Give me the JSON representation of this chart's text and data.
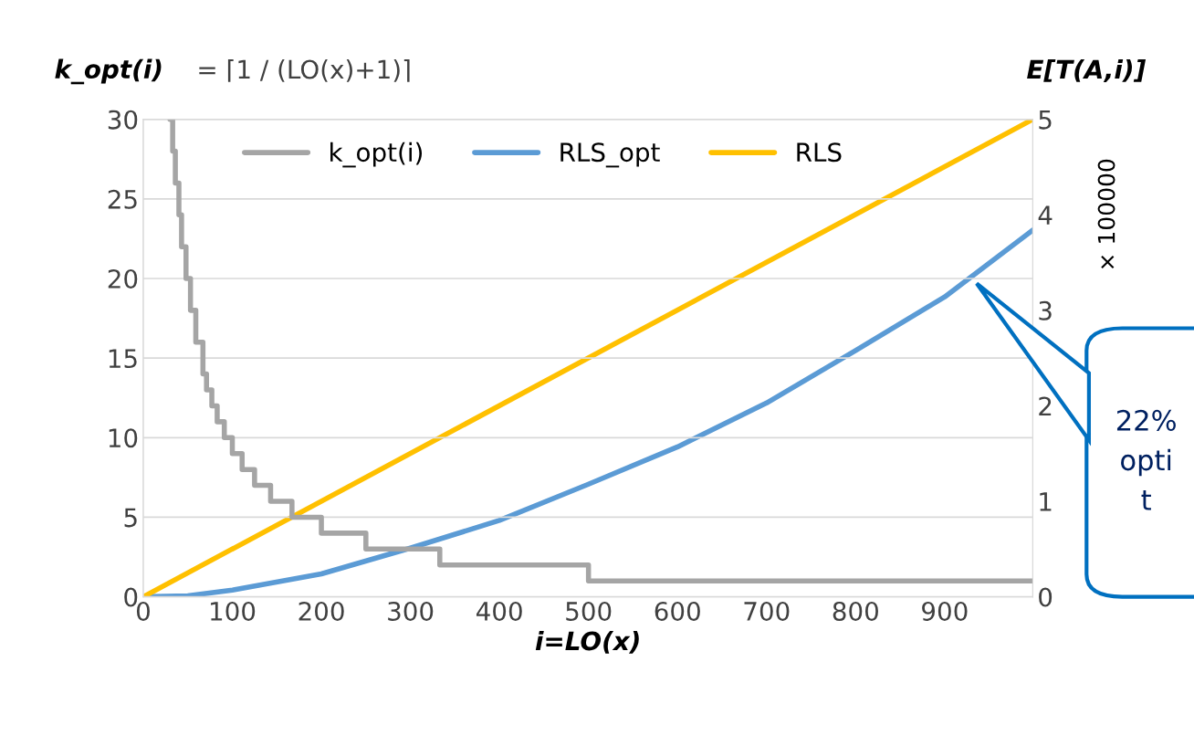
{
  "chart_data": {
    "type": "line",
    "xlabel": "i=LO(x)",
    "ylabel": "k_opt(i)",
    "y2label": "E[T(A,i)]",
    "xlim": [
      0,
      999
    ],
    "xticks": [
      0,
      100,
      200,
      300,
      400,
      500,
      600,
      700,
      800,
      900
    ],
    "ylim": [
      0,
      30
    ],
    "yticks": [
      0,
      5,
      10,
      15,
      20,
      25,
      30
    ],
    "y2lim": [
      0,
      5
    ],
    "y2ticks": [
      0,
      1,
      2,
      3,
      4,
      5
    ],
    "grid": "y",
    "legend": "top",
    "line_style": "solid",
    "marker": "none",
    "series": [
      {
        "name": "k_opt(i)",
        "type": "step",
        "color": "#a5a5a5",
        "x": [
          30,
          33,
          36,
          40,
          43,
          48,
          53,
          59,
          67,
          71,
          77,
          83,
          91,
          100,
          111,
          125,
          143,
          167,
          200,
          250,
          333,
          500,
          999
        ],
        "values": [
          30,
          28,
          26,
          24,
          22,
          20,
          18,
          16,
          14,
          13,
          12,
          11,
          10,
          9,
          8,
          7,
          6,
          5,
          4,
          3,
          2,
          1,
          1
        ]
      },
      {
        "name": "RLS_opt",
        "color": "#5b9bd5",
        "axis": "y2",
        "x": [
          0,
          50,
          100,
          200,
          300,
          400,
          500,
          600,
          700,
          800,
          900,
          999
        ],
        "values": [
          0,
          0.01,
          0.07,
          0.24,
          0.51,
          0.8,
          1.18,
          1.57,
          2.03,
          2.58,
          3.14,
          3.84
        ]
      },
      {
        "name": "RLS",
        "color": "#ffc000",
        "axis": "y2",
        "x": [
          0,
          999
        ],
        "values": [
          0,
          5
        ]
      }
    ],
    "annotations": [
      "= ⌈1 / (LO(x)+1)⌉",
      "× 100000",
      "22%\nopti\nt"
    ]
  }
}
